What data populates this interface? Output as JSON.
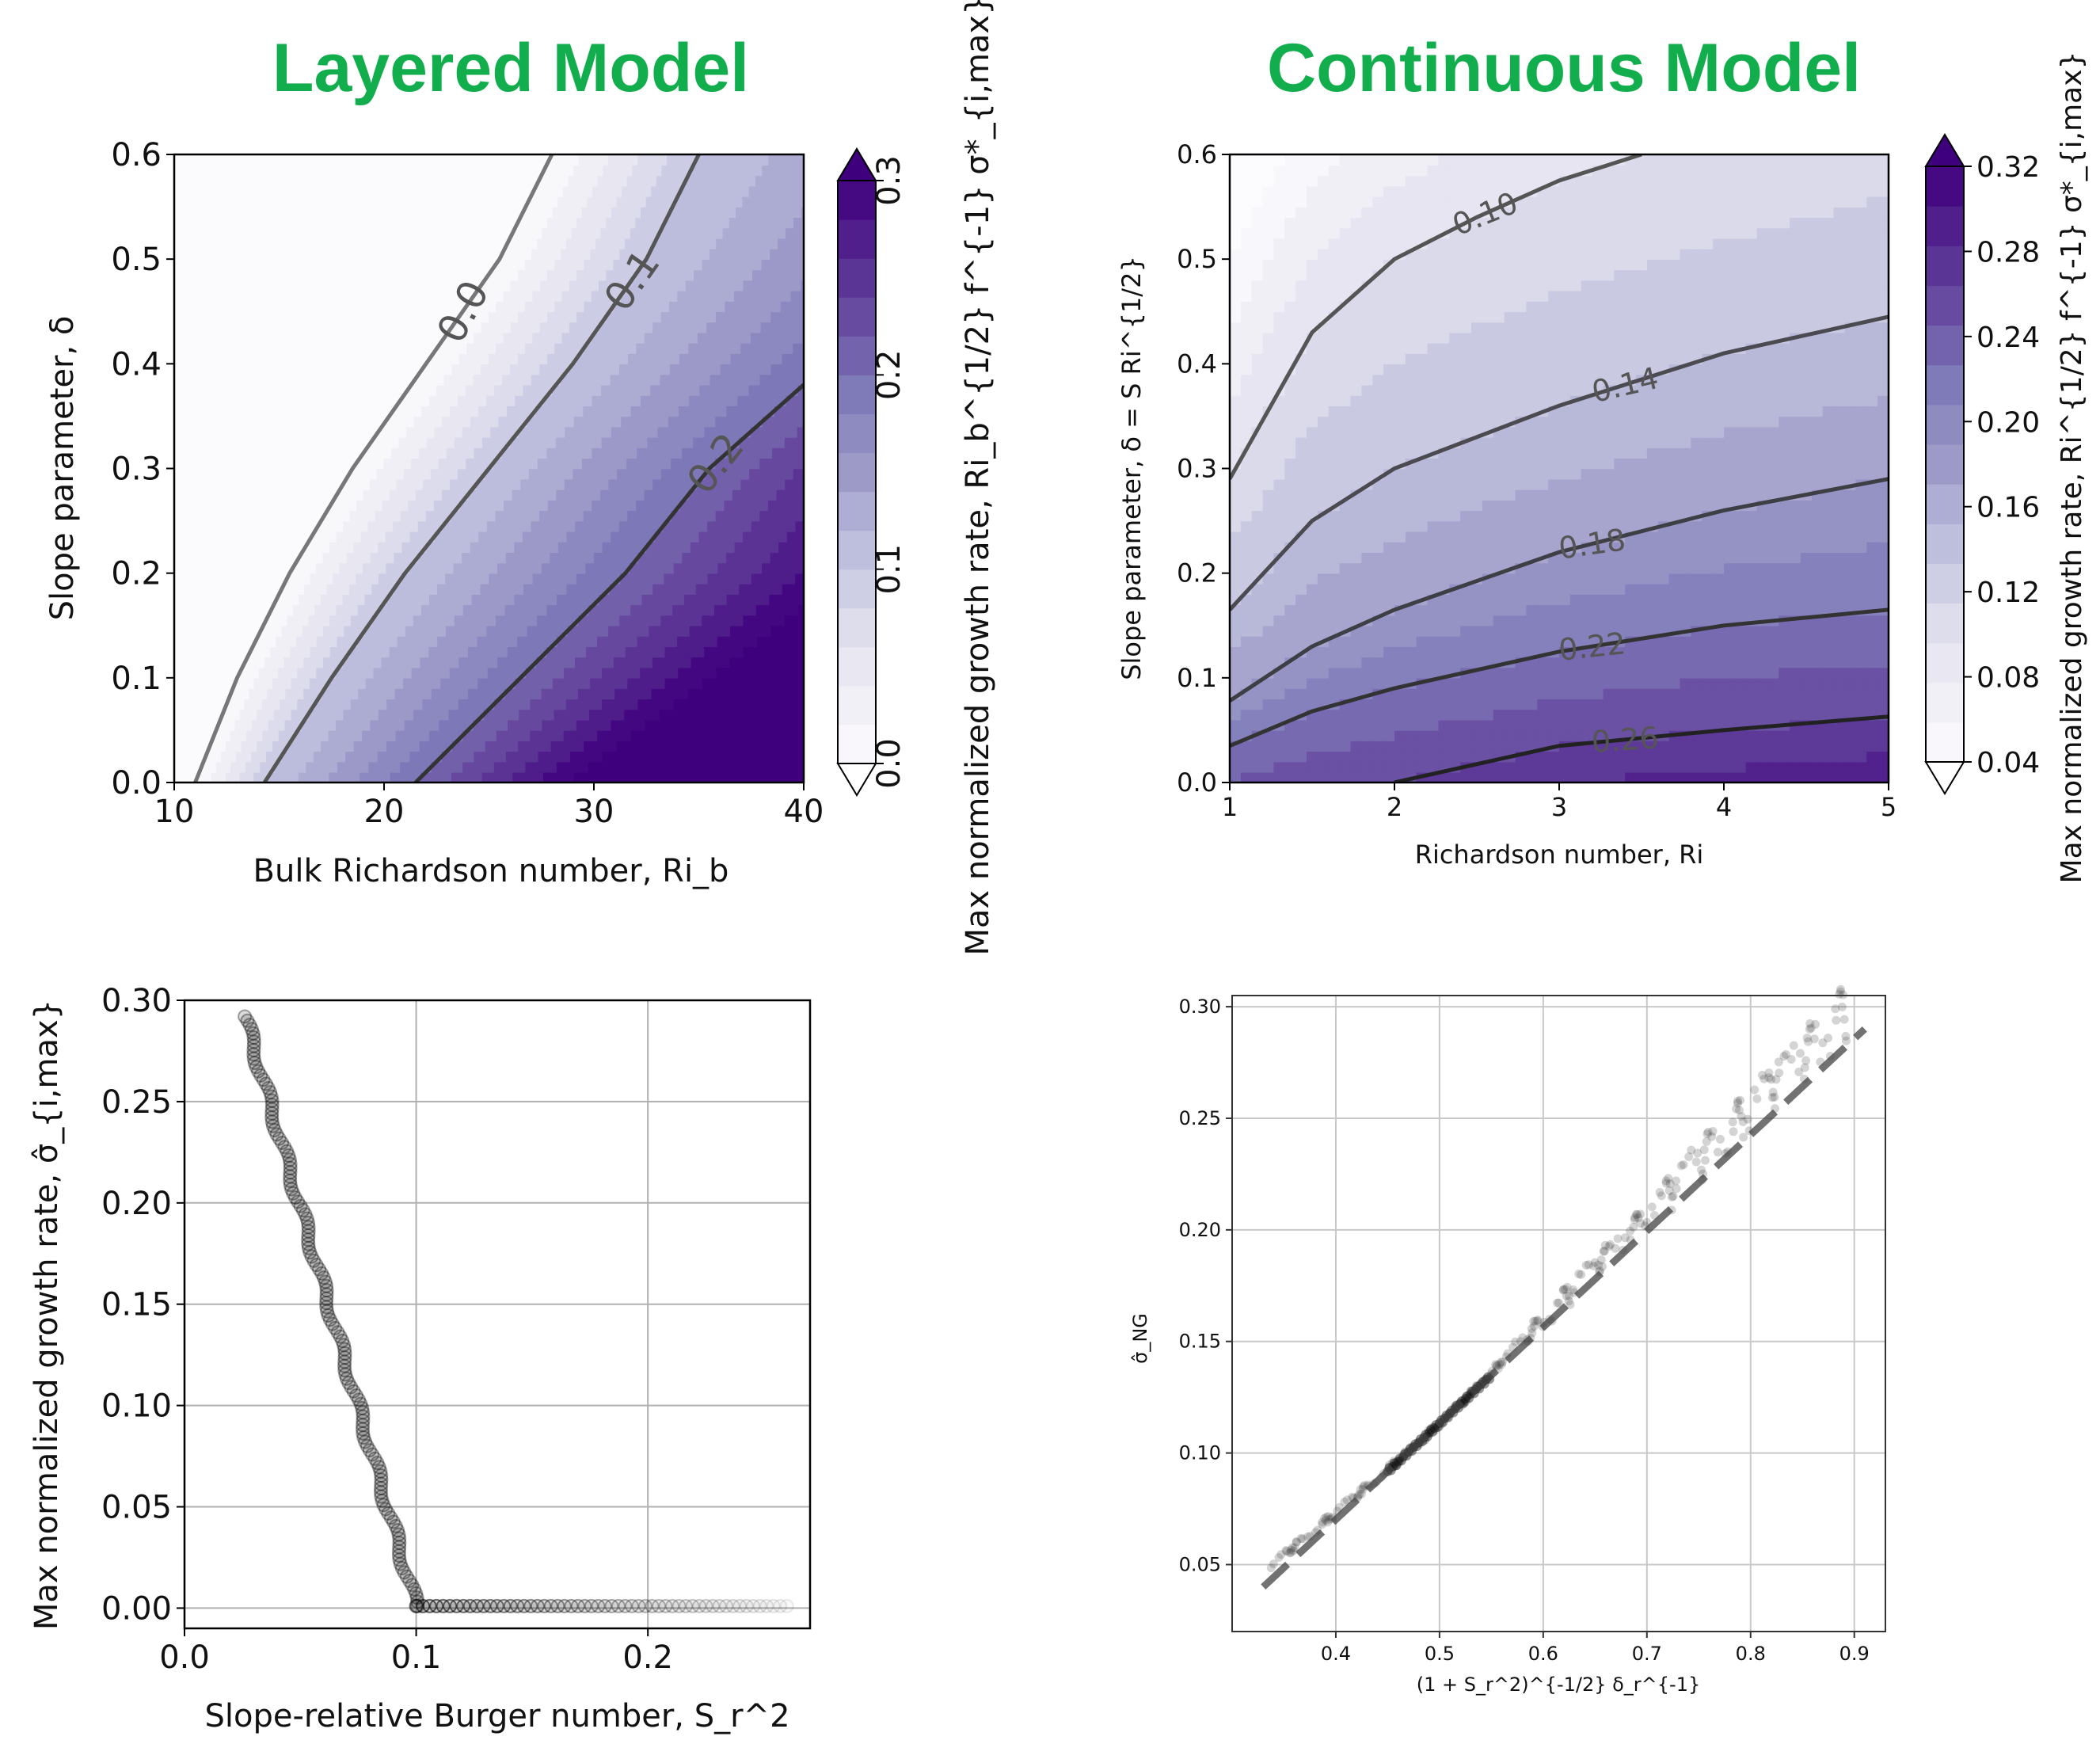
{
  "headings": {
    "left": "Layered Model",
    "right": "Continuous Model"
  },
  "colors": {
    "heading": "#12ad4c",
    "colormap": "Purples",
    "points": "#000000",
    "grid": "#b0b0b0"
  },
  "chart_data": [
    {
      "id": "layered",
      "type": "heatmap",
      "subtype": "filled-contour",
      "title": "",
      "xlabel": "Bulk Richardson number, Ri_b",
      "ylabel": "Slope parameter, δ",
      "colorbar_label": "Max normalized growth rate, Ri_b^{1/2} f^{-1} σ*_{i,max}",
      "xlim": [
        10,
        40
      ],
      "ylim": [
        0,
        0.6
      ],
      "xticks": [
        "10",
        "20",
        "30",
        "40"
      ],
      "yticks": [
        "0.0",
        "0.1",
        "0.2",
        "0.3",
        "0.4",
        "0.5",
        "0.6"
      ],
      "colorbar_range": [
        0,
        0.3
      ],
      "colorbar_ticks": [
        "0.0",
        "0.1",
        "0.2",
        "0.3"
      ],
      "contours": [
        {
          "label": "0.0",
          "level": 0.0,
          "points": [
            [
              11.0,
              0.0
            ],
            [
              13.0,
              0.1
            ],
            [
              15.5,
              0.2
            ],
            [
              18.5,
              0.3
            ],
            [
              22.0,
              0.4
            ],
            [
              25.5,
              0.5
            ],
            [
              28.0,
              0.6
            ]
          ]
        },
        {
          "label": "0.1",
          "level": 0.1,
          "points": [
            [
              14.3,
              0.0
            ],
            [
              17.5,
              0.1
            ],
            [
              21.0,
              0.2
            ],
            [
              25.0,
              0.3
            ],
            [
              29.0,
              0.4
            ],
            [
              32.5,
              0.5
            ],
            [
              35.0,
              0.6
            ]
          ]
        },
        {
          "label": "0.2",
          "level": 0.2,
          "points": [
            [
              21.5,
              0.0
            ],
            [
              26.5,
              0.1
            ],
            [
              31.5,
              0.2
            ],
            [
              35.5,
              0.3
            ],
            [
              40.0,
              0.38
            ]
          ]
        }
      ]
    },
    {
      "id": "continuous",
      "type": "heatmap",
      "subtype": "filled-contour",
      "title": "",
      "xlabel": "Richardson number, Ri",
      "ylabel": "Slope parameter, δ = S Ri^{1/2}",
      "colorbar_label": "Max normalized growth rate, Ri^{1/2} f^{-1} σ*_{i,max}",
      "xlim": [
        1,
        5
      ],
      "ylim": [
        0,
        0.6
      ],
      "xticks": [
        "1",
        "2",
        "3",
        "4",
        "5"
      ],
      "yticks": [
        "0.0",
        "0.1",
        "0.2",
        "0.3",
        "0.4",
        "0.5",
        "0.6"
      ],
      "colorbar_range": [
        0.04,
        0.32
      ],
      "colorbar_ticks": [
        "0.04",
        "0.08",
        "0.12",
        "0.16",
        "0.20",
        "0.24",
        "0.28",
        "0.32"
      ],
      "contours": [
        {
          "label": "0.10",
          "level": 0.1,
          "points": [
            [
              1.0,
              0.29
            ],
            [
              1.5,
              0.43
            ],
            [
              2.0,
              0.5
            ],
            [
              2.5,
              0.54
            ],
            [
              3.0,
              0.575
            ],
            [
              3.5,
              0.6
            ]
          ]
        },
        {
          "label": "0.14",
          "level": 0.14,
          "points": [
            [
              1.0,
              0.165
            ],
            [
              1.5,
              0.25
            ],
            [
              2.0,
              0.3
            ],
            [
              3.0,
              0.36
            ],
            [
              4.0,
              0.41
            ],
            [
              5.0,
              0.445
            ]
          ]
        },
        {
          "label": "0.18",
          "level": 0.18,
          "points": [
            [
              1.0,
              0.078
            ],
            [
              1.5,
              0.13
            ],
            [
              2.0,
              0.165
            ],
            [
              3.0,
              0.22
            ],
            [
              4.0,
              0.26
            ],
            [
              5.0,
              0.29
            ]
          ]
        },
        {
          "label": "0.22",
          "level": 0.22,
          "points": [
            [
              1.0,
              0.035
            ],
            [
              1.5,
              0.068
            ],
            [
              2.0,
              0.09
            ],
            [
              3.0,
              0.125
            ],
            [
              4.0,
              0.15
            ],
            [
              5.0,
              0.165
            ]
          ]
        },
        {
          "label": "0.26",
          "level": 0.26,
          "points": [
            [
              2.0,
              0.0
            ],
            [
              3.0,
              0.035
            ],
            [
              4.0,
              0.05
            ],
            [
              5.0,
              0.063
            ]
          ]
        }
      ]
    },
    {
      "id": "scatter-burger",
      "type": "scatter",
      "title": "",
      "xlabel": "Slope-relative Burger number, S_r^2",
      "ylabel": "Max normalized growth rate, σ̂_{i,max}",
      "xlim": [
        0,
        0.27
      ],
      "ylim": [
        -0.01,
        0.3
      ],
      "xticks": [
        "0.0",
        "0.1",
        "0.2"
      ],
      "yticks": [
        "0.00",
        "0.05",
        "0.10",
        "0.15",
        "0.20",
        "0.25",
        "0.30"
      ],
      "grid": true,
      "segments": [
        {
          "from": [
            0.026,
            0.292
          ],
          "to": [
            0.1,
            0.001
          ]
        },
        {
          "from": [
            0.1,
            0.001
          ],
          "to": [
            0.26,
            0.001
          ]
        }
      ]
    },
    {
      "id": "scatter-ng",
      "type": "scatter",
      "title": "",
      "xlabel": "(1 + S_r^2)^{-1/2} δ_r^{-1}",
      "ylabel": "σ̂_NG",
      "xlim": [
        0.3,
        0.93
      ],
      "ylim": [
        0.02,
        0.305
      ],
      "xticks": [
        "0.4",
        "0.5",
        "0.6",
        "0.7",
        "0.8",
        "0.9"
      ],
      "yticks": [
        "0.05",
        "0.10",
        "0.15",
        "0.20",
        "0.25",
        "0.30"
      ],
      "grid": true,
      "fit_line": {
        "from": [
          0.33,
          0.04
        ],
        "to": [
          0.91,
          0.29
        ],
        "style": "dashed"
      },
      "point_range": {
        "x": [
          0.33,
          0.9
        ],
        "y": [
          0.045,
          0.29
        ]
      }
    }
  ]
}
